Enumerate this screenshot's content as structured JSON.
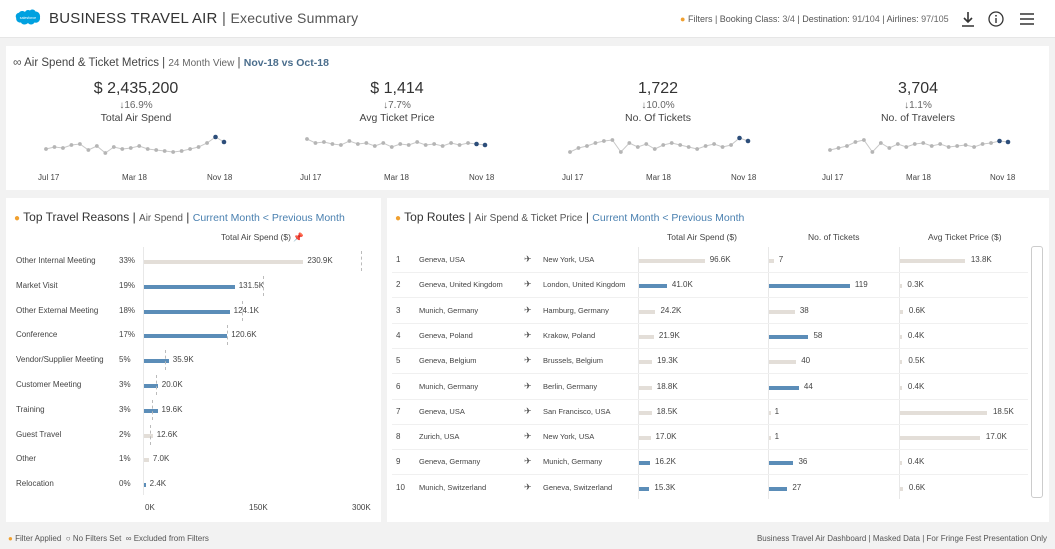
{
  "header": {
    "title": "BUSINESS TRAVEL AIR",
    "separator": "|",
    "subtitle": "Executive Summary",
    "logo_text": "salesforce",
    "filters": {
      "label": "Filters",
      "booking_class_key": "Booking Class:",
      "booking_class_val": "3/4",
      "destination_key": "Destination:",
      "destination_val": "91/104",
      "airlines_key": "Airlines:",
      "airlines_val": "97/105"
    },
    "icons": [
      "download-icon",
      "info-icon",
      "menu-icon"
    ]
  },
  "kpi_section": {
    "title": "Air Spend & Ticket Metrics",
    "view": "24 Month View",
    "period": "Nov-18 vs Oct-18",
    "kpis": [
      {
        "value": "$ 2,435,200",
        "change": "↓16.9%",
        "label": "Total Air Spend"
      },
      {
        "value": "$ 1,414",
        "change": "↓7.7%",
        "label": "Avg Ticket Price"
      },
      {
        "value": "1,722",
        "change": "↓10.0%",
        "label": "No. Of Tickets"
      },
      {
        "value": "3,704",
        "change": "↓1.1%",
        "label": "No. of Travelers"
      }
    ],
    "axis_labels": [
      "Jul 17",
      "Mar 18",
      "Nov 18"
    ]
  },
  "chart_data": [
    {
      "type": "line",
      "title": "Total Air Spend",
      "x_labels": [
        "Jul 17",
        "Mar 18",
        "Nov 18"
      ],
      "series": [
        {
          "values": [
            5.3,
            5.5,
            5.4,
            5.7,
            5.8,
            5.2,
            5.6,
            4.9,
            5.5,
            5.3,
            5.4,
            5.6,
            5.3,
            5.2,
            5.1,
            5.0,
            5.1,
            5.3,
            5.5,
            5.9,
            6.5,
            6.0
          ]
        }
      ]
    },
    {
      "type": "line",
      "title": "Avg Ticket Price",
      "x_labels": [
        "Jul 17",
        "Mar 18",
        "Nov 18"
      ],
      "series": [
        {
          "values": [
            6.3,
            5.9,
            6.0,
            5.8,
            5.7,
            6.1,
            5.8,
            5.9,
            5.6,
            5.9,
            5.5,
            5.8,
            5.7,
            6.0,
            5.7,
            5.8,
            5.6,
            5.9,
            5.7,
            5.9,
            5.8,
            5.7
          ]
        }
      ]
    },
    {
      "type": "line",
      "title": "No. Of Tickets",
      "x_labels": [
        "Jul 17",
        "Mar 18",
        "Nov 18"
      ],
      "series": [
        {
          "values": [
            5.0,
            5.4,
            5.6,
            5.9,
            6.1,
            6.2,
            5.0,
            5.9,
            5.5,
            5.8,
            5.3,
            5.7,
            5.9,
            5.7,
            5.5,
            5.3,
            5.6,
            5.8,
            5.5,
            5.7,
            6.4,
            6.1
          ]
        }
      ]
    },
    {
      "type": "line",
      "title": "No. of Travelers",
      "x_labels": [
        "Jul 17",
        "Mar 18",
        "Nov 18"
      ],
      "series": [
        {
          "values": [
            5.2,
            5.4,
            5.6,
            6.0,
            6.2,
            5.0,
            5.9,
            5.4,
            5.8,
            5.5,
            5.8,
            5.9,
            5.6,
            5.8,
            5.5,
            5.6,
            5.7,
            5.5,
            5.8,
            5.9,
            6.1,
            6.0
          ]
        }
      ]
    },
    {
      "type": "bar",
      "title": "Total Air Spend ($)",
      "categories": [
        "Other Internal Meeting",
        "Market Visit",
        "Other External Meeting",
        "Conference",
        "Vendor/Supplier Meeting",
        "Customer Meeting",
        "Training",
        "Guest Travel",
        "Other",
        "Relocation"
      ],
      "values": [
        230.9,
        131.5,
        124.1,
        120.6,
        35.9,
        20.0,
        19.6,
        12.6,
        7.0,
        2.4
      ],
      "xlim": [
        0,
        300
      ]
    }
  ],
  "travel_reasons": {
    "title": "Top Travel Reasons",
    "metric": "Air Spend",
    "compare": "Current Month < Previous Month",
    "column_header": "Total Air Spend ($)",
    "pin_icon": "pin-icon",
    "rows": [
      {
        "reason": "Other Internal Meeting",
        "pct": "33%",
        "value": "230.9K",
        "bar": 230.9,
        "prev": 315,
        "current_gt_prev": false
      },
      {
        "reason": "Market Visit",
        "pct": "19%",
        "value": "131.5K",
        "bar": 131.5,
        "prev": 172,
        "current_gt_prev": true
      },
      {
        "reason": "Other External Meeting",
        "pct": "18%",
        "value": "124.1K",
        "bar": 124.1,
        "prev": 142,
        "current_gt_prev": true
      },
      {
        "reason": "Conference",
        "pct": "17%",
        "value": "120.6K",
        "bar": 120.6,
        "prev": 120,
        "current_gt_prev": true
      },
      {
        "reason": "Vendor/Supplier Meeting",
        "pct": "5%",
        "value": "35.9K",
        "bar": 35.9,
        "prev": 30,
        "current_gt_prev": true
      },
      {
        "reason": "Customer Meeting",
        "pct": "3%",
        "value": "20.0K",
        "bar": 20.0,
        "prev": 18,
        "current_gt_prev": true
      },
      {
        "reason": "Training",
        "pct": "3%",
        "value": "19.6K",
        "bar": 19.6,
        "prev": 12,
        "current_gt_prev": true
      },
      {
        "reason": "Guest Travel",
        "pct": "2%",
        "value": "12.6K",
        "bar": 12.6,
        "prev": 8,
        "current_gt_prev": false
      },
      {
        "reason": "Other",
        "pct": "1%",
        "value": "7.0K",
        "bar": 7.0,
        "prev": 0,
        "current_gt_prev": false
      },
      {
        "reason": "Relocation",
        "pct": "0%",
        "value": "2.4K",
        "bar": 2.4,
        "prev": 0,
        "current_gt_prev": true
      }
    ],
    "axis": [
      "0K",
      "150K",
      "300K"
    ]
  },
  "top_routes": {
    "title": "Top Routes",
    "metric": "Air Spend & Ticket Price",
    "compare": "Current Month < Previous Month",
    "headers": [
      "Total Air Spend ($)",
      "No. of Tickets",
      "Avg Ticket Price ($)"
    ],
    "rows": [
      {
        "n": "1",
        "from": "Geneva, USA",
        "to": "New York, USA",
        "spend": "96.6K",
        "spend_v": 96.6,
        "spend_blue": false,
        "tickets": "7",
        "tickets_v": 7,
        "tickets_blue": false,
        "price": "13.8K",
        "price_v": 13.8,
        "price_blue": false
      },
      {
        "n": "2",
        "from": "Geneva, United Kingdom",
        "to": "London, United Kingdom",
        "spend": "41.0K",
        "spend_v": 41.0,
        "spend_blue": true,
        "tickets": "119",
        "tickets_v": 119,
        "tickets_blue": true,
        "price": "0.3K",
        "price_v": 0.3,
        "price_blue": false
      },
      {
        "n": "3",
        "from": "Munich, Germany",
        "to": "Hamburg, Germany",
        "spend": "24.2K",
        "spend_v": 24.2,
        "spend_blue": false,
        "tickets": "38",
        "tickets_v": 38,
        "tickets_blue": false,
        "price": "0.6K",
        "price_v": 0.6,
        "price_blue": false
      },
      {
        "n": "4",
        "from": "Geneva, Poland",
        "to": "Krakow, Poland",
        "spend": "21.9K",
        "spend_v": 21.9,
        "spend_blue": false,
        "tickets": "58",
        "tickets_v": 58,
        "tickets_blue": true,
        "price": "0.4K",
        "price_v": 0.4,
        "price_blue": false
      },
      {
        "n": "5",
        "from": "Geneva, Belgium",
        "to": "Brussels, Belgium",
        "spend": "19.3K",
        "spend_v": 19.3,
        "spend_blue": false,
        "tickets": "40",
        "tickets_v": 40,
        "tickets_blue": false,
        "price": "0.5K",
        "price_v": 0.5,
        "price_blue": false
      },
      {
        "n": "6",
        "from": "Munich, Germany",
        "to": "Berlin, Germany",
        "spend": "18.8K",
        "spend_v": 18.8,
        "spend_blue": false,
        "tickets": "44",
        "tickets_v": 44,
        "tickets_blue": true,
        "price": "0.4K",
        "price_v": 0.4,
        "price_blue": false
      },
      {
        "n": "7",
        "from": "Geneva, USA",
        "to": "San Francisco, USA",
        "spend": "18.5K",
        "spend_v": 18.5,
        "spend_blue": false,
        "tickets": "1",
        "tickets_v": 1,
        "tickets_blue": false,
        "price": "18.5K",
        "price_v": 18.5,
        "price_blue": false
      },
      {
        "n": "8",
        "from": "Zurich, USA",
        "to": "New York, USA",
        "spend": "17.0K",
        "spend_v": 17.0,
        "spend_blue": false,
        "tickets": "1",
        "tickets_v": 1,
        "tickets_blue": false,
        "price": "17.0K",
        "price_v": 17.0,
        "price_blue": false
      },
      {
        "n": "9",
        "from": "Geneva, Germany",
        "to": "Munich, Germany",
        "spend": "16.2K",
        "spend_v": 16.2,
        "spend_blue": true,
        "tickets": "36",
        "tickets_v": 36,
        "tickets_blue": true,
        "price": "0.4K",
        "price_v": 0.4,
        "price_blue": false
      },
      {
        "n": "10",
        "from": "Munich, Switzerland",
        "to": "Geneva, Switzerland",
        "spend": "15.3K",
        "spend_v": 15.3,
        "spend_blue": true,
        "tickets": "27",
        "tickets_v": 27,
        "tickets_blue": true,
        "price": "0.6K",
        "price_v": 0.6,
        "price_blue": false
      }
    ]
  },
  "footer": {
    "legend_filter": "Filter Applied",
    "legend_nofilter": "No Filters Set",
    "legend_excluded": "Excluded from Filters",
    "right": "Business Travel Air Dashboard | Masked Data | For Fringe Fest Presentation Only"
  },
  "colors": {
    "accent_orange": "#f0a030",
    "bar_blue": "#5b8db8",
    "bar_grey": "#e3ded8",
    "spark_dark": "#2d4e7a",
    "brand_blue": "#00a1e0"
  }
}
